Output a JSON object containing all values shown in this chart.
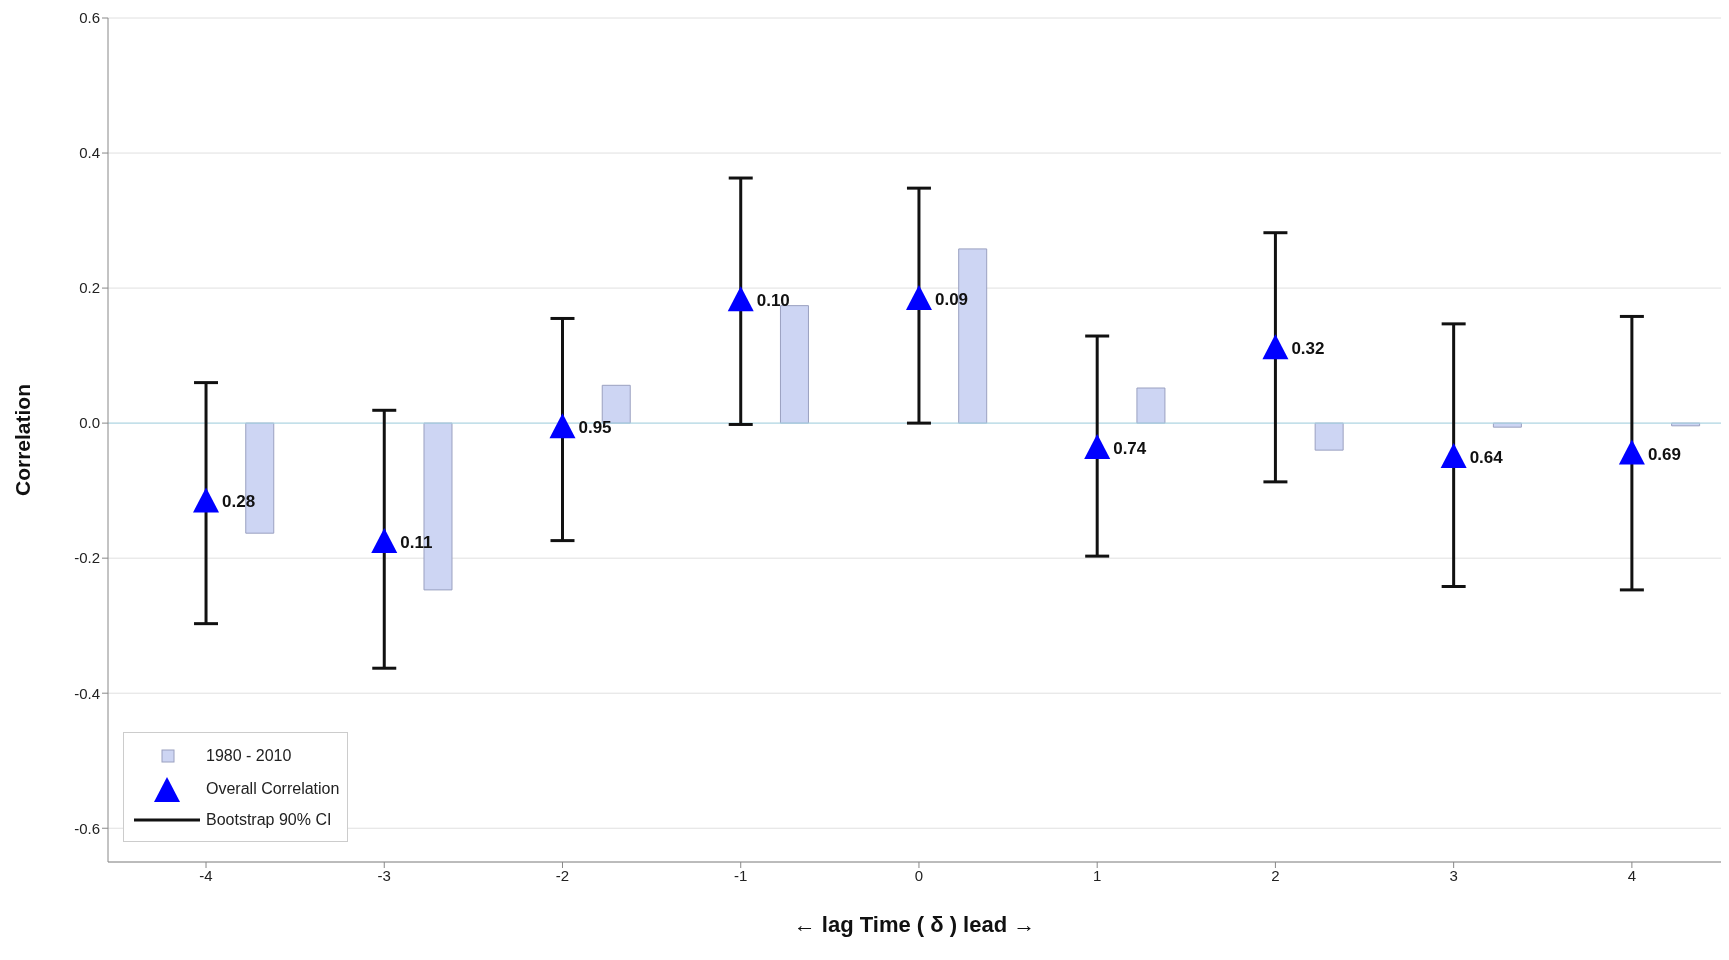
{
  "chart_data": {
    "type": "scatter",
    "xlabel": "← lag   Time ( δ )   lead →",
    "ylabel": "Correlation",
    "xlim": [
      -4.55,
      4.5
    ],
    "xticks": [
      -4,
      -3,
      -2,
      -1,
      0,
      1,
      2,
      3,
      4
    ],
    "ylim": [
      -0.65,
      0.6
    ],
    "yticks": [
      -0.6,
      -0.4,
      -0.2,
      {
        "value": 0,
        "label": "0.0"
      },
      0.2,
      0.4,
      0.6
    ],
    "grid": "y",
    "legend": "bottom left",
    "ref_lines": [
      {
        "axis": "y",
        "value": 0,
        "color": "#a8d8e8"
      }
    ],
    "series": [
      {
        "name": "1980 - 2010",
        "type": "bar",
        "color": "#cdd5f3",
        "x": [
          -3.7,
          -2.7,
          -1.7,
          -0.7,
          0.3,
          1.3,
          2.3,
          3.3,
          4.3
        ],
        "values": [
          -0.163,
          -0.247,
          0.056,
          0.174,
          0.258,
          0.052,
          -0.04,
          -0.006,
          -0.004
        ]
      },
      {
        "name": "Overall Correlation",
        "marker": "triangle",
        "color": "#0000ff",
        "x": [
          -4,
          -3,
          -2,
          -1,
          0,
          1,
          2,
          3,
          4
        ],
        "values": [
          -0.116,
          -0.176,
          -0.006,
          0.182,
          0.184,
          -0.037,
          0.111,
          -0.05,
          -0.045
        ],
        "errors": [
          [
            -0.297,
            0.06
          ],
          [
            -0.363,
            0.019
          ],
          [
            -0.174,
            0.155
          ],
          [
            -0.002,
            0.363
          ],
          [
            0,
            0.348
          ],
          [
            -0.197,
            0.129
          ],
          [
            -0.087,
            0.282
          ],
          [
            -0.242,
            0.147
          ],
          [
            -0.247,
            0.158
          ]
        ]
      }
    ],
    "annotations": [
      "Bootstrap 90% CI",
      {
        "text": "0.28",
        "x": -4,
        "y": -0.116
      },
      {
        "text": "0.11",
        "x": -3,
        "y": -0.176
      },
      {
        "text": "0.95",
        "x": -2,
        "y": -0.006
      },
      {
        "text": "0.10",
        "x": -1,
        "y": 0.182
      },
      {
        "text": "0.09",
        "x": 0,
        "y": 0.184
      },
      {
        "text": "0.74",
        "x": 1,
        "y": -0.037
      },
      {
        "text": "0.32",
        "x": 2,
        "y": 0.111
      },
      {
        "text": "0.64",
        "x": 3,
        "y": -0.05
      },
      {
        "text": "0.69",
        "x": 4,
        "y": -0.045
      }
    ]
  }
}
